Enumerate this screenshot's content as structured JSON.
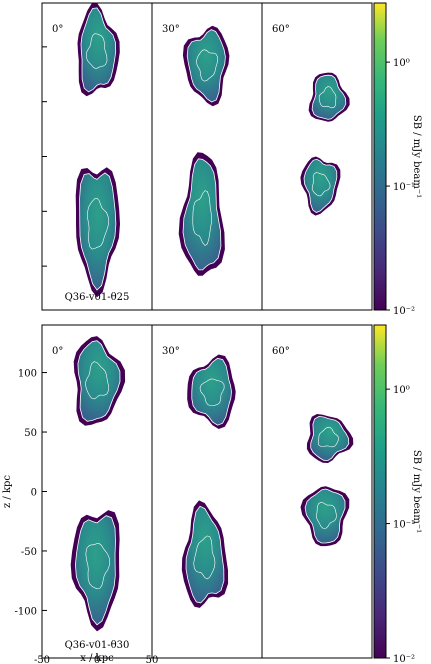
{
  "chart_data": {
    "type": "heatmap",
    "description_free": true,
    "panels_per_row": 3,
    "angle_labels": [
      "0°",
      "30°",
      "60°"
    ],
    "rows": [
      {
        "label": "Q36-v01-θ25",
        "colorbar": {
          "label": "SB / mJy beam⁻¹",
          "scale": "log",
          "range": [
            0.01,
            3
          ],
          "ticks": [
            {
              "value": 0.01,
              "label": "10⁻²"
            },
            {
              "value": 0.1,
              "label": "10⁻¹"
            },
            {
              "value": 1,
              "label": "10⁰"
            }
          ]
        }
      },
      {
        "label": "Q36-v01-θ30",
        "colorbar": {
          "label": "SB / mJy beam⁻¹",
          "scale": "log",
          "range": [
            0.01,
            3
          ],
          "ticks": [
            {
              "value": 0.01,
              "label": "10⁻²"
            },
            {
              "value": 0.1,
              "label": "10⁻¹"
            },
            {
              "value": 1,
              "label": "10⁰"
            }
          ]
        }
      }
    ],
    "xlabel": "x / kpc",
    "ylabel": "z / kpc",
    "xlim": [
      -50,
      50
    ],
    "ylim": [
      -140,
      140
    ],
    "x_ticks": [
      -50,
      0,
      50
    ],
    "y_ticks": [
      -100,
      -50,
      0,
      50,
      100
    ]
  }
}
